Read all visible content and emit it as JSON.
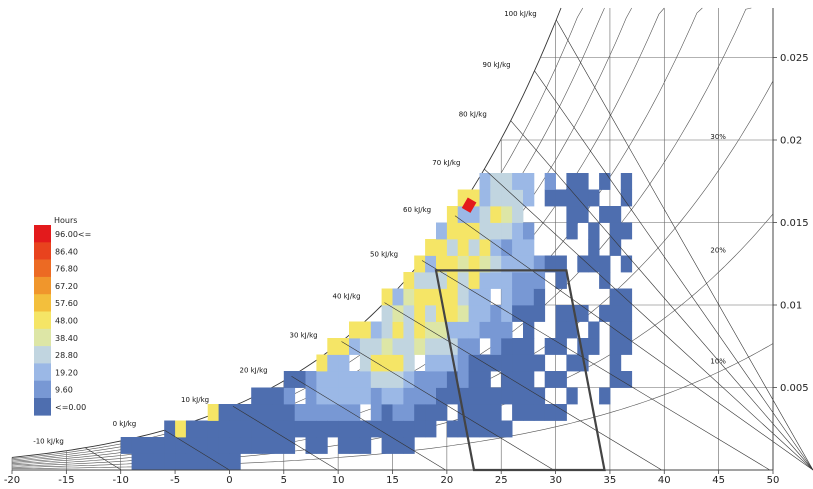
{
  "chart_data": {
    "type": "heatmap",
    "title": "",
    "xlabel": "",
    "ylabel": "",
    "x_ticks": [
      "-20",
      "-15",
      "-10",
      "-5",
      "0",
      "5",
      "10",
      "15",
      "20",
      "25",
      "30",
      "35",
      "40",
      "45",
      "50"
    ],
    "y_ticks": [
      "0.005",
      "0.01",
      "0.015",
      "0.02",
      "0.025"
    ],
    "xlim": [
      -20,
      50
    ],
    "ylim": [
      0,
      0.028
    ],
    "y_axis_side": "right",
    "enthalpy_lines": [
      {
        "value": -10,
        "label": "-10 kJ/kg"
      },
      {
        "value": 0,
        "label": "0 kJ/kg"
      },
      {
        "value": 10,
        "label": "10 kJ/kg"
      },
      {
        "value": 20,
        "label": "20 kJ/kg"
      },
      {
        "value": 30,
        "label": "30 kJ/kg"
      },
      {
        "value": 40,
        "label": "40 kJ/kg"
      },
      {
        "value": 50,
        "label": "50 kJ/kg"
      },
      {
        "value": 60,
        "label": "60 kJ/kg"
      },
      {
        "value": 70,
        "label": "70 kJ/kg"
      },
      {
        "value": 80,
        "label": "80 kJ/kg"
      },
      {
        "value": 90,
        "label": "90 kJ/kg"
      },
      {
        "value": 100,
        "label": "100 kJ/kg"
      }
    ],
    "rh_labels": [
      {
        "rh": 0.3,
        "label": "30%"
      },
      {
        "rh": 0.2,
        "label": "20%"
      },
      {
        "rh": 0.1,
        "label": "10%"
      }
    ],
    "comfort_zone": [
      [
        22.5,
        0
      ],
      [
        34.5,
        0
      ],
      [
        31.0,
        0.0121
      ],
      [
        19.0,
        0.0121
      ]
    ],
    "legend": {
      "title": "Hours",
      "labels": [
        "96.00<=",
        "86.40",
        "76.80",
        "67.20",
        "57.60",
        "48.00",
        "38.40",
        "28.80",
        "19.20",
        "9.60",
        "<=0.00"
      ],
      "colors": [
        "#e31a1c",
        "#e8431e",
        "#ec6a23",
        "#f0962c",
        "#f3bf3c",
        "#f5e566",
        "#dde6a6",
        "#c1d5e0",
        "#9bb8e6",
        "#7898d4",
        "#4e6eaf"
      ]
    },
    "grid": true
  }
}
